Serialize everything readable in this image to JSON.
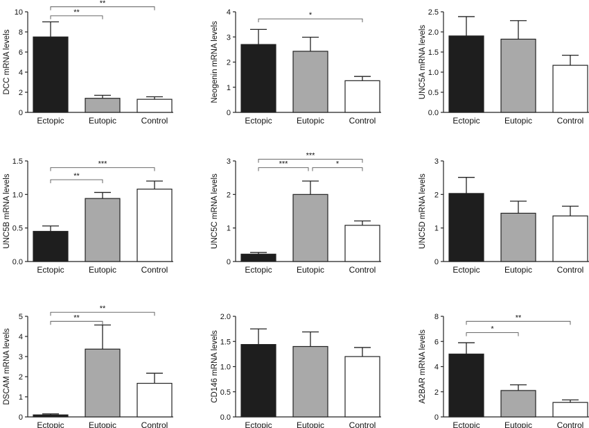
{
  "colors": {
    "ectopic": "#1e1e1e",
    "eutopic": "#a9a9a9",
    "control": "#ffffff",
    "axis": "#222222",
    "bracket": "#555555"
  },
  "chart_data": [
    {
      "type": "bar",
      "ylabel": "DCC mRNA levels",
      "categories": [
        "Ectopic",
        "Eutopic",
        "Control"
      ],
      "values": [
        7.5,
        1.4,
        1.3
      ],
      "errors": [
        1.5,
        0.3,
        0.25
      ],
      "ylim": [
        0,
        10
      ],
      "yticks": [
        0,
        2,
        4,
        6,
        8,
        10
      ],
      "ytick_labels": [
        "0",
        "2",
        "4",
        "6",
        "8",
        "10"
      ],
      "significance": [
        {
          "from": 0,
          "to": 1,
          "label": "**",
          "level": 9.6
        },
        {
          "from": 0,
          "to": 2,
          "label": "**",
          "level": 10.5
        }
      ]
    },
    {
      "type": "bar",
      "ylabel": "Neogenin mRNA levels",
      "categories": [
        "Ectopic",
        "Eutopic",
        "Control"
      ],
      "values": [
        2.7,
        2.43,
        1.26
      ],
      "errors": [
        0.6,
        0.56,
        0.17
      ],
      "ylim": [
        0,
        4
      ],
      "yticks": [
        0,
        1,
        2,
        3,
        4
      ],
      "ytick_labels": [
        "0",
        "1",
        "2",
        "3",
        "4"
      ],
      "significance": [
        {
          "from": 0,
          "to": 2,
          "label": "*",
          "level": 3.72
        }
      ]
    },
    {
      "type": "bar",
      "ylabel": "UNC5A mRNA levels",
      "categories": [
        "Ectopic",
        "Eutopic",
        "Control"
      ],
      "values": [
        1.9,
        1.82,
        1.17
      ],
      "errors": [
        0.48,
        0.46,
        0.25
      ],
      "ylim": [
        0,
        2.5
      ],
      "yticks": [
        0,
        0.5,
        1,
        1.5,
        2,
        2.5
      ],
      "ytick_labels": [
        "0.0",
        "0.5",
        "1.0",
        "1.5",
        "2.0",
        "2.5"
      ],
      "significance": []
    },
    {
      "type": "bar",
      "ylabel": "UNC5B mRNA levels",
      "categories": [
        "Ectopic",
        "Eutopic",
        "Control"
      ],
      "values": [
        0.45,
        0.94,
        1.08
      ],
      "errors": [
        0.08,
        0.09,
        0.12
      ],
      "ylim": [
        0,
        1.5
      ],
      "yticks": [
        0,
        0.5,
        1,
        1.5
      ],
      "ytick_labels": [
        "0.0",
        "0.5",
        "1.0",
        "1.5"
      ],
      "significance": [
        {
          "from": 0,
          "to": 1,
          "label": "**",
          "level": 1.22
        },
        {
          "from": 0,
          "to": 2,
          "label": "***",
          "level": 1.4
        }
      ]
    },
    {
      "type": "bar",
      "ylabel": "UNC5C mRNA levels",
      "categories": [
        "Ectopic",
        "Eutopic",
        "Control"
      ],
      "values": [
        0.22,
        2.0,
        1.08
      ],
      "errors": [
        0.05,
        0.4,
        0.13
      ],
      "ylim": [
        0,
        3
      ],
      "yticks": [
        0,
        1,
        2,
        3
      ],
      "ytick_labels": [
        "0",
        "1",
        "2",
        "3"
      ],
      "significance": [
        {
          "from": 0,
          "to": 1,
          "label": "***",
          "level": 2.8
        },
        {
          "from": 1,
          "to": 2,
          "label": "*",
          "level": 2.8
        },
        {
          "from": 0,
          "to": 2,
          "label": "***",
          "level": 3.05
        }
      ]
    },
    {
      "type": "bar",
      "ylabel": "UNC5D mRNA levels",
      "categories": [
        "Ectopic",
        "Eutopic",
        "Control"
      ],
      "values": [
        2.03,
        1.44,
        1.36
      ],
      "errors": [
        0.48,
        0.36,
        0.29
      ],
      "ylim": [
        0,
        3
      ],
      "yticks": [
        0,
        1,
        2,
        3
      ],
      "ytick_labels": [
        "0",
        "1",
        "2",
        "3"
      ],
      "significance": []
    },
    {
      "type": "bar",
      "ylabel": "DSCAM mRNA levels",
      "categories": [
        "Ectopic",
        "Eutopic",
        "Control"
      ],
      "values": [
        0.1,
        3.37,
        1.67
      ],
      "errors": [
        0.05,
        1.2,
        0.5
      ],
      "ylim": [
        0,
        5
      ],
      "yticks": [
        0,
        1,
        2,
        3,
        4,
        5
      ],
      "ytick_labels": [
        "0",
        "1",
        "2",
        "3",
        "4",
        "5"
      ],
      "significance": [
        {
          "from": 0,
          "to": 1,
          "label": "**",
          "level": 4.75
        },
        {
          "from": 0,
          "to": 2,
          "label": "**",
          "level": 5.2
        }
      ]
    },
    {
      "type": "bar",
      "ylabel": "CD146 mRNA levels",
      "categories": [
        "Ectopic",
        "Eutopic",
        "Control"
      ],
      "values": [
        1.44,
        1.4,
        1.2
      ],
      "errors": [
        0.31,
        0.29,
        0.18
      ],
      "ylim": [
        0,
        2
      ],
      "yticks": [
        0,
        0.5,
        1,
        1.5,
        2
      ],
      "ytick_labels": [
        "0.0",
        "0.5",
        "1.0",
        "1.5",
        "2.0"
      ],
      "significance": []
    },
    {
      "type": "bar",
      "ylabel": "A2BAR mRNA levels",
      "categories": [
        "Ectopic",
        "Eutopic",
        "Control"
      ],
      "values": [
        5.0,
        2.1,
        1.15
      ],
      "errors": [
        0.9,
        0.45,
        0.2
      ],
      "ylim": [
        0,
        8
      ],
      "yticks": [
        0,
        2,
        4,
        6,
        8
      ],
      "ytick_labels": [
        "0",
        "2",
        "4",
        "6",
        "8"
      ],
      "significance": [
        {
          "from": 0,
          "to": 1,
          "label": "*",
          "level": 6.7
        },
        {
          "from": 0,
          "to": 2,
          "label": "**",
          "level": 7.6
        }
      ]
    }
  ]
}
